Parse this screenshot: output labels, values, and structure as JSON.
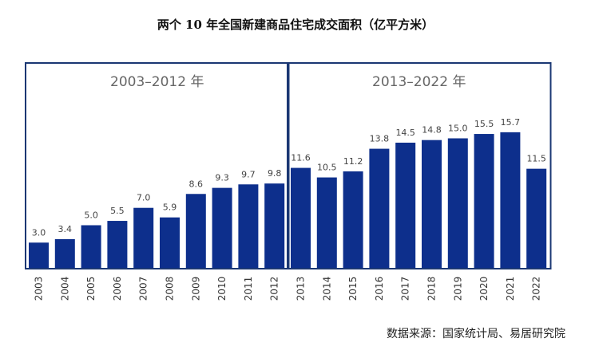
{
  "title": "两个 10 年全国新建商品住宅成交面积（亿平方米）",
  "source": "数据来源：国家统计局、易居研究院",
  "chart_data": {
    "type": "bar",
    "title": "两个 10 年全国新建商品住宅成交面积（亿平方米）",
    "categories": [
      "2003",
      "2004",
      "2005",
      "2006",
      "2007",
      "2008",
      "2009",
      "2010",
      "2011",
      "2012",
      "2013",
      "2014",
      "2015",
      "2016",
      "2017",
      "2018",
      "2019",
      "2020",
      "2021",
      "2022"
    ],
    "values": [
      3.0,
      3.4,
      5.0,
      5.5,
      7.0,
      5.9,
      8.6,
      9.3,
      9.7,
      9.8,
      11.6,
      10.5,
      11.2,
      13.8,
      14.5,
      14.8,
      15.0,
      15.5,
      15.7,
      11.5
    ],
    "value_labels": [
      "3.0",
      "3.4",
      "5.0",
      "5.5",
      "7.0",
      "5.9",
      "8.6",
      "9.3",
      "9.7",
      "9.8",
      "11.6",
      "10.5",
      "11.2",
      "13.8",
      "14.5",
      "14.8",
      "15.0",
      "15.5",
      "15.7",
      "11.5"
    ],
    "groups": [
      {
        "label": "2003–2012 年",
        "from": 0,
        "to": 9
      },
      {
        "label": "2013–2022 年",
        "from": 10,
        "to": 19
      }
    ],
    "bar_color": "#0d2f8c",
    "frame_color": "#1a3773",
    "ylim": [
      0,
      16
    ],
    "grid": false,
    "xlabel": "",
    "ylabel": ""
  }
}
